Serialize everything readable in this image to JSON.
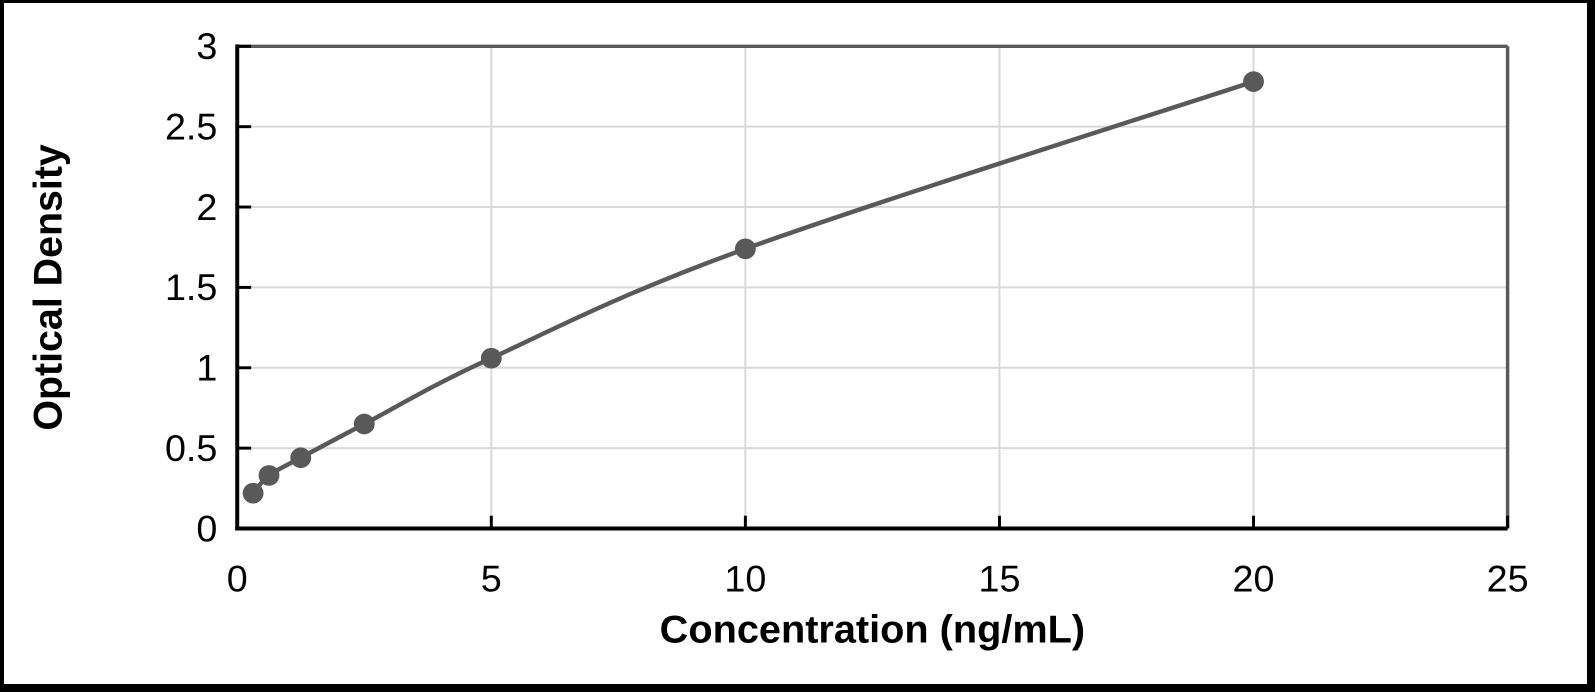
{
  "chart_data": {
    "type": "line",
    "title": "",
    "xlabel": "Concentration (ng/mL)",
    "ylabel": "Optical Density",
    "x": [
      0.313,
      0.625,
      1.25,
      2.5,
      5,
      10,
      20
    ],
    "y": [
      0.22,
      0.33,
      0.44,
      0.65,
      1.06,
      1.74,
      2.78
    ],
    "xlim": [
      0,
      25
    ],
    "ylim": [
      0,
      3
    ],
    "x_ticks": [
      0,
      5,
      10,
      15,
      20,
      25
    ],
    "x_tick_labels": [
      "0",
      "5",
      "10",
      "15",
      "20",
      "25"
    ],
    "y_ticks": [
      0,
      0.5,
      1,
      1.5,
      2,
      2.5,
      3
    ],
    "y_tick_labels": [
      "0",
      "0.5",
      "1",
      "1.5",
      "2",
      "2.5",
      "3"
    ],
    "grid": true,
    "legend": "none",
    "marker": "circle",
    "smooth_line": true,
    "style": {
      "line_color": "#595959",
      "marker_color": "#595959",
      "gridline_color": "#d9d9d9",
      "axis_color": "#000000",
      "plot_border_color": "#595959",
      "frame_color": "#000000",
      "background_color": "#ffffff"
    }
  }
}
